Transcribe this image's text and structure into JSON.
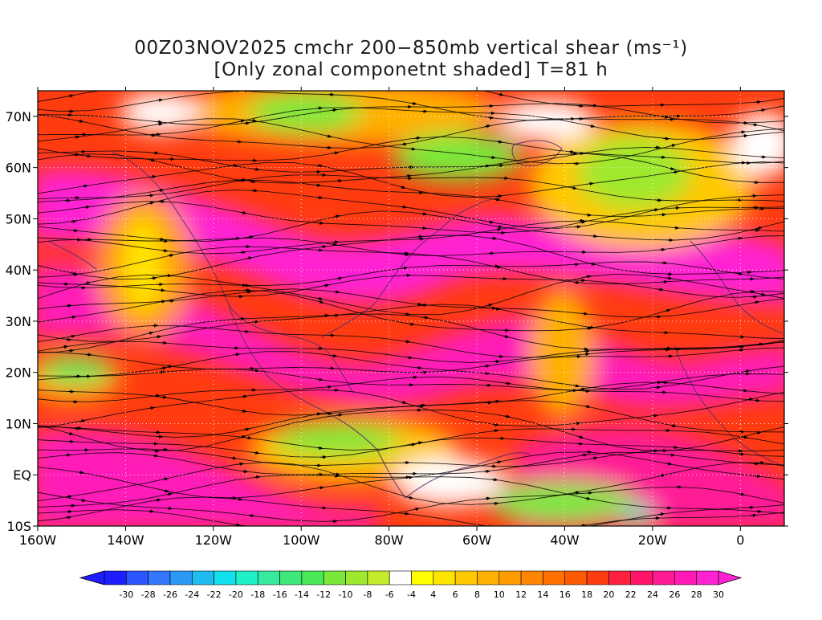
{
  "title": {
    "line1": "00Z03NOV2025 cmchr 200−850mb vertical shear (ms⁻¹)",
    "line2": "[Only zonal componetnt shaded] T=81 h"
  },
  "map": {
    "lat_labels": [
      "70N",
      "60N",
      "50N",
      "40N",
      "30N",
      "20N",
      "10N",
      "EQ",
      "10S"
    ],
    "lat_values": [
      70,
      60,
      50,
      40,
      30,
      20,
      10,
      0,
      -10
    ],
    "lon_labels": [
      "160W",
      "140W",
      "120W",
      "100W",
      "80W",
      "60W",
      "40W",
      "20W",
      "0"
    ],
    "lon_values": [
      -160,
      -140,
      -120,
      -100,
      -80,
      -60,
      -40,
      -20,
      0
    ],
    "lon_range": [
      -160,
      10
    ],
    "lat_range": [
      -10,
      75
    ]
  },
  "colorbar": {
    "tick_labels": [
      "-30",
      "-28",
      "-26",
      "-24",
      "-22",
      "-20",
      "-18",
      "-16",
      "-14",
      "-12",
      "-10",
      "-8",
      "-6",
      "-4",
      "4",
      "6",
      "8",
      "10",
      "12",
      "14",
      "16",
      "18",
      "20",
      "22",
      "24",
      "26",
      "28",
      "30"
    ],
    "colors": [
      "#1d1dff",
      "#2b55ff",
      "#3377ff",
      "#2b99f5",
      "#1ebcef",
      "#12e0ef",
      "#1ef0c8",
      "#36eaa0",
      "#3ee87a",
      "#4be85a",
      "#7ae83a",
      "#9ee82e",
      "#c4ec2a",
      "#ffffff",
      "#ffff00",
      "#ffe400",
      "#ffc800",
      "#ffb000",
      "#ff9c00",
      "#ff8600",
      "#ff7000",
      "#ff5a00",
      "#ff3c10",
      "#ff2040",
      "#ff1468",
      "#ff1a96",
      "#ff1ab8",
      "#ff22d2"
    ]
  },
  "legend_colors": {
    "strong_positive": "#ff1ab8",
    "moderate_positive": "#ff3c10",
    "weak_positive": "#ffc800",
    "near_zero": "#ffffff",
    "negative": "#7ae83a",
    "coastline": "#5a2a6a",
    "streamline": "#000000"
  }
}
